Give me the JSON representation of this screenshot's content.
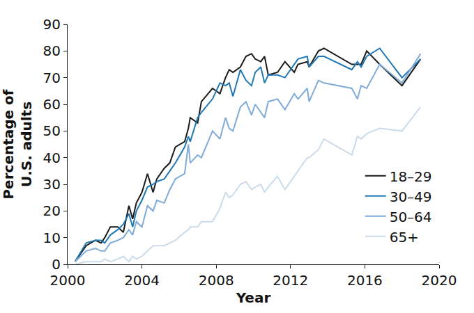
{
  "chart_data": {
    "type": "line",
    "x_label": "Year",
    "y_label": "Percentage of\nU.S. adults",
    "x": [
      2000.4,
      2001.0,
      2001.5,
      2001.8,
      2002.0,
      2002.3,
      2002.7,
      2003.0,
      2003.3,
      2003.5,
      2003.7,
      2004.0,
      2004.3,
      2004.6,
      2004.8,
      2005.2,
      2005.5,
      2005.8,
      2006.3,
      2006.5,
      2006.6,
      2007.0,
      2007.2,
      2007.8,
      2008.2,
      2008.5,
      2008.7,
      2008.9,
      2009.3,
      2009.6,
      2009.9,
      2010.1,
      2010.4,
      2010.6,
      2010.8,
      2011.3,
      2011.7,
      2012.2,
      2012.4,
      2012.9,
      2013.0,
      2013.5,
      2013.8,
      2015.3,
      2015.6,
      2015.8,
      2016.1,
      2016.8,
      2018.0,
      2019.0
    ],
    "series": [
      {
        "name": "18–29",
        "color": "#1a1a1a",
        "values": [
          1,
          7,
          9,
          8,
          10,
          14,
          14,
          12,
          22,
          17,
          23,
          27,
          34,
          27,
          32,
          36,
          38,
          44,
          46,
          51,
          55,
          53,
          61,
          66,
          64,
          70,
          73,
          72,
          74,
          78,
          79,
          77,
          76,
          78,
          71,
          72,
          76,
          72,
          75,
          76,
          74,
          80,
          81,
          75,
          75,
          75,
          80,
          75,
          67,
          77
        ]
      },
      {
        "name": "30–49",
        "color": "#1f77b4",
        "values": [
          1,
          8,
          9,
          9,
          8,
          11,
          13,
          15,
          19,
          14,
          20,
          24,
          29,
          30,
          31,
          32,
          35,
          38,
          44,
          48,
          46,
          55,
          57,
          62,
          68,
          67,
          68,
          63,
          73,
          69,
          67,
          72,
          74,
          68,
          71,
          71,
          70,
          75,
          77,
          78,
          74,
          78,
          78,
          73,
          76,
          74,
          78,
          81,
          70,
          77
        ]
      },
      {
        "name": "50–64",
        "color": "#7fabd8",
        "values": [
          1,
          5,
          6,
          5,
          5,
          8,
          9,
          10,
          13,
          11,
          16,
          14,
          22,
          20,
          24,
          23,
          28,
          32,
          34,
          45,
          38,
          41,
          40,
          50,
          47,
          55,
          51,
          50,
          59,
          61,
          56,
          60,
          57,
          55,
          61,
          62,
          58,
          64,
          62,
          66,
          61,
          69,
          68,
          66,
          62,
          67,
          66,
          75,
          68,
          79
        ]
      },
      {
        "name": "65+",
        "color": "#cbdbea",
        "values": [
          0,
          1,
          1,
          1,
          2,
          1,
          2,
          3,
          1,
          3,
          2,
          3,
          5,
          7,
          7,
          7,
          8,
          9,
          12,
          13,
          14,
          14,
          16,
          16,
          21,
          27,
          25,
          26,
          30,
          31,
          28,
          29,
          30,
          27,
          29,
          33,
          28,
          33,
          35,
          40,
          40,
          43,
          47,
          41,
          48,
          47,
          49,
          51,
          50,
          59
        ]
      }
    ],
    "xlim": [
      2000,
      2020
    ],
    "xticks": [
      2000,
      2004,
      2008,
      2012,
      2016,
      2020
    ],
    "ylim": [
      0,
      90
    ],
    "yticks": [
      0,
      10,
      20,
      30,
      40,
      50,
      60,
      70,
      80,
      90
    ],
    "grid": false,
    "legend": "bottom right"
  }
}
